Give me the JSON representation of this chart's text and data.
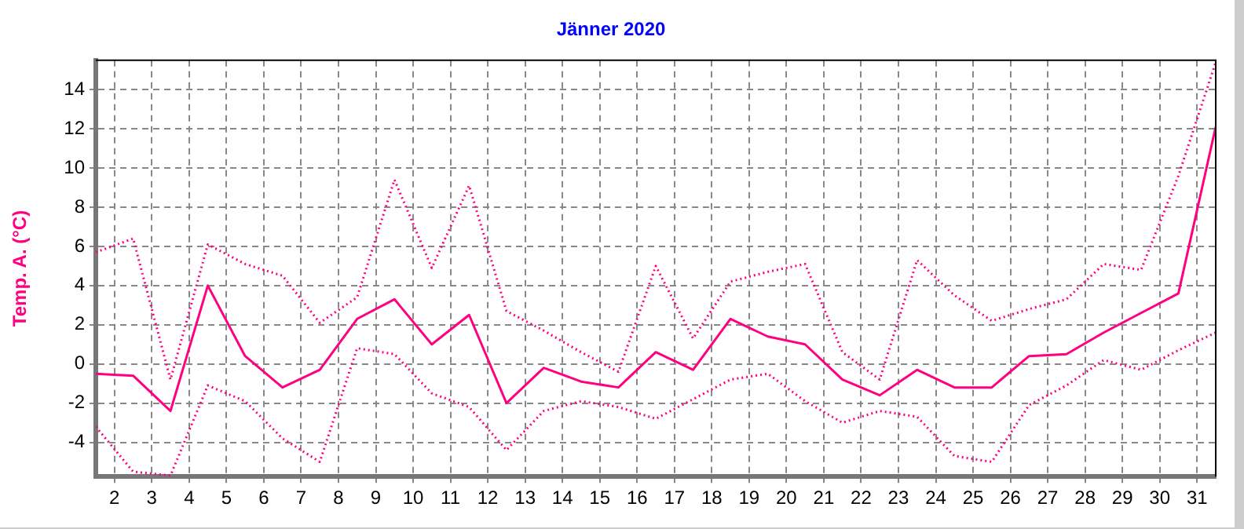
{
  "chart_data": {
    "type": "line",
    "title": "Jänner 2020",
    "ylabel": "Temp. A. (°C)",
    "x": [
      1.5,
      2.5,
      3.5,
      4.5,
      5.5,
      6.5,
      7.5,
      8.5,
      9.5,
      10.5,
      11.5,
      12.5,
      13.5,
      14.5,
      15.5,
      16.5,
      17.5,
      18.5,
      19.5,
      20.5,
      21.5,
      22.5,
      23.5,
      24.5,
      25.5,
      26.5,
      27.5,
      28.5,
      29.5,
      30.5,
      31.5
    ],
    "series": [
      {
        "color": "#ff0080",
        "line_style": "dotted",
        "values": [
          5.7,
          6.4,
          -0.8,
          6.1,
          5.1,
          4.5,
          2.1,
          3.4,
          9.4,
          4.9,
          9.1,
          2.7,
          1.7,
          0.6,
          -0.4,
          5.0,
          1.3,
          4.2,
          4.7,
          5.1,
          0.6,
          -0.8,
          5.3,
          3.5,
          2.2,
          2.8,
          3.3,
          5.1,
          4.8,
          9.6,
          15.4
        ]
      },
      {
        "color": "#ff0080",
        "line_style": "solid",
        "values": [
          -0.5,
          -0.6,
          -2.4,
          4.0,
          0.4,
          -1.2,
          -0.3,
          2.3,
          3.3,
          1.0,
          2.5,
          -2.0,
          -0.2,
          -0.9,
          -1.2,
          0.6,
          -0.3,
          2.3,
          1.4,
          1.0,
          -0.8,
          -1.6,
          -0.3,
          -1.2,
          -1.2,
          0.4,
          0.5,
          1.6,
          2.6,
          3.6,
          12.1
        ]
      },
      {
        "color": "#ff0080",
        "line_style": "dotted",
        "values": [
          -3.2,
          -5.5,
          -5.7,
          -1.1,
          -1.9,
          -3.8,
          -5.0,
          0.8,
          0.5,
          -1.5,
          -2.2,
          -4.4,
          -2.4,
          -1.9,
          -2.2,
          -2.8,
          -1.8,
          -0.8,
          -0.5,
          -1.9,
          -3.0,
          -2.4,
          -2.7,
          -4.7,
          -5.0,
          -2.1,
          -1.1,
          0.2,
          -0.3,
          0.7,
          1.6
        ]
      }
    ],
    "xlim": [
      1.5,
      31.5
    ],
    "xticks": [
      2,
      3,
      4,
      5,
      6,
      7,
      8,
      9,
      10,
      11,
      12,
      13,
      14,
      15,
      16,
      17,
      18,
      19,
      20,
      21,
      22,
      23,
      24,
      25,
      26,
      27,
      28,
      29,
      30,
      31
    ],
    "ylim": [
      -5.75,
      15.5
    ],
    "yticks": [
      -4,
      -2,
      0,
      2,
      4,
      6,
      8,
      10,
      12,
      14
    ],
    "grid": true,
    "legend": false,
    "marker": "none"
  }
}
